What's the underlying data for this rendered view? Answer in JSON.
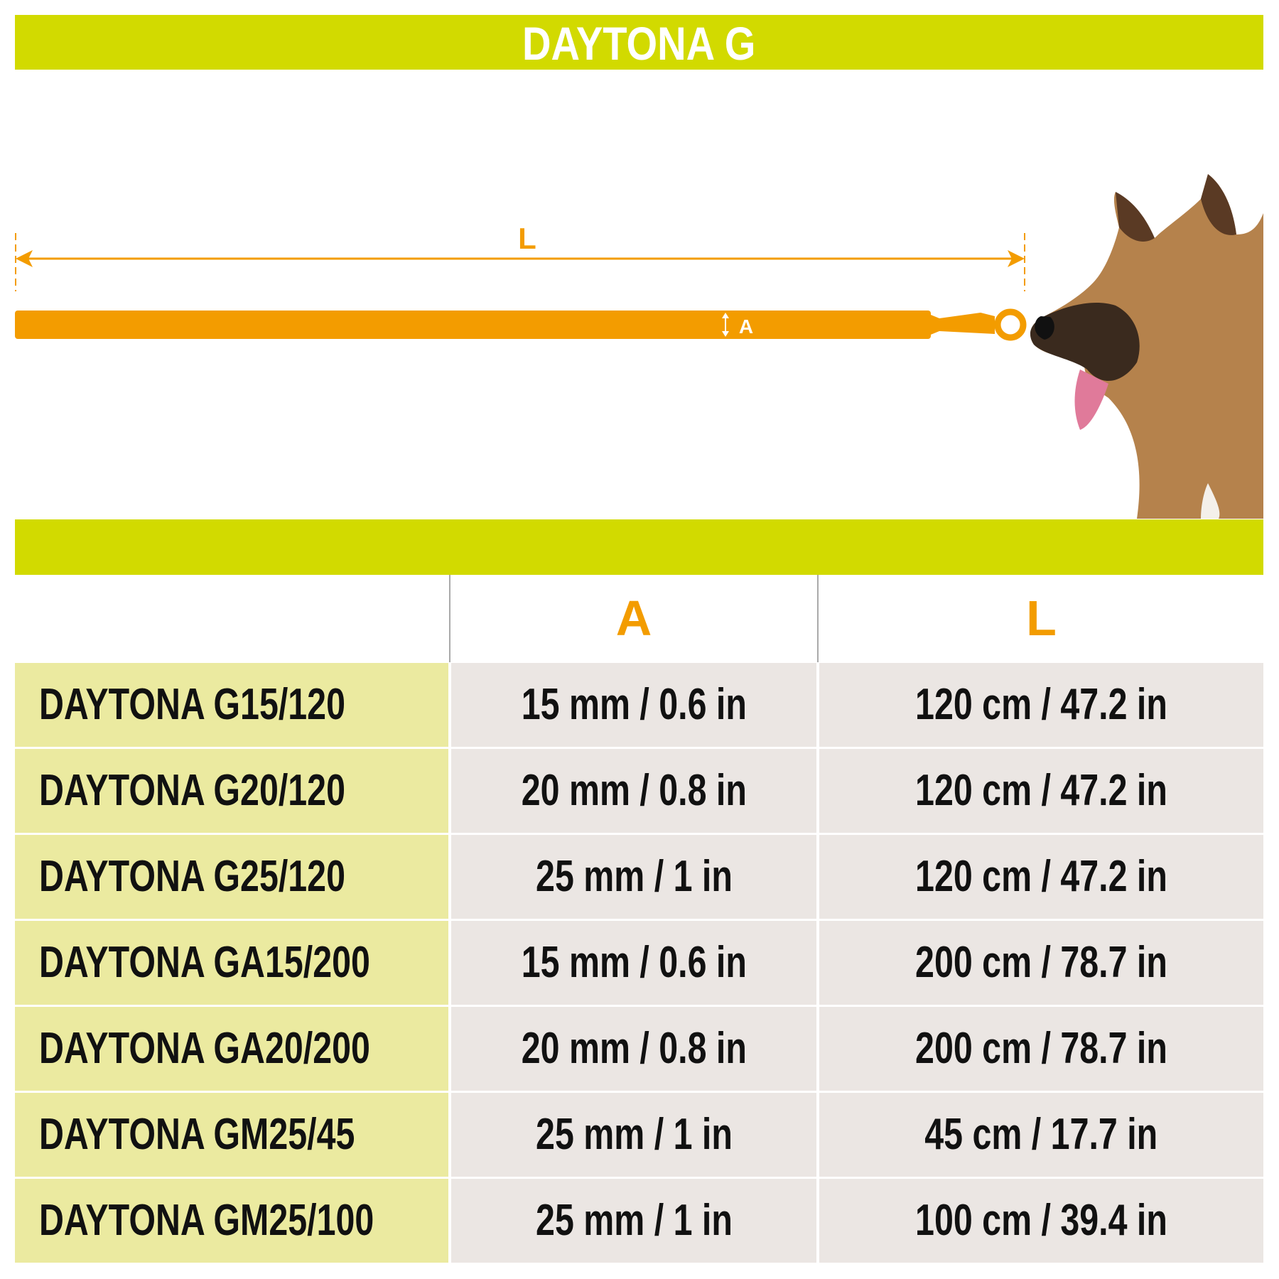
{
  "title": "DAYTONA G",
  "diagram": {
    "length_label": "L",
    "width_label": "A"
  },
  "colors": {
    "brand_green": "#d2da00",
    "accent_orange": "#f39c00",
    "name_cell_bg": "#ebeaa0",
    "value_cell_bg": "#ebe6e3"
  },
  "table": {
    "headers": [
      "",
      "A",
      "L"
    ],
    "rows": [
      {
        "name": "DAYTONA G15/120",
        "a": "15 mm / 0.6 in",
        "l": "120 cm / 47.2 in"
      },
      {
        "name": "DAYTONA G20/120",
        "a": "20 mm / 0.8 in",
        "l": "120 cm / 47.2 in"
      },
      {
        "name": "DAYTONA G25/120",
        "a": "25 mm / 1 in",
        "l": "120 cm / 47.2 in"
      },
      {
        "name": "DAYTONA GA15/200",
        "a": "15 mm / 0.6 in",
        "l": "200 cm / 78.7 in"
      },
      {
        "name": "DAYTONA GA20/200",
        "a": "20 mm / 0.8 in",
        "l": "200 cm / 78.7 in"
      },
      {
        "name": "DAYTONA GM25/45",
        "a": "25 mm / 1 in",
        "l": "45 cm / 17.7 in"
      },
      {
        "name": "DAYTONA GM25/100",
        "a": "25 mm / 1 in",
        "l": "100 cm / 39.4 in"
      }
    ]
  }
}
